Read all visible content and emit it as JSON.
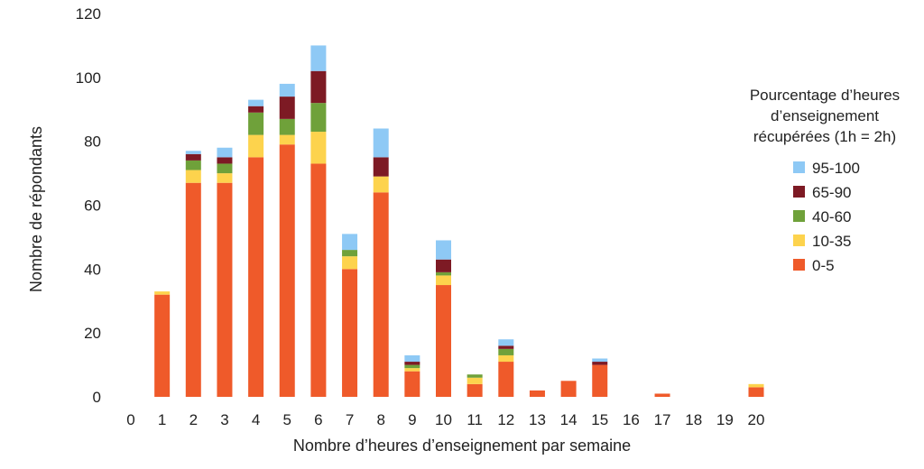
{
  "chart_data": {
    "type": "bar",
    "stacked": true,
    "xlabel": "Nombre d’heures d’enseignement par semaine",
    "ylabel": "Nombre de répondants",
    "ylim": [
      0,
      120
    ],
    "yticks": [
      0,
      20,
      40,
      60,
      80,
      100,
      120
    ],
    "categories": [
      "0",
      "1",
      "2",
      "3",
      "4",
      "5",
      "6",
      "7",
      "8",
      "9",
      "10",
      "11",
      "12",
      "13",
      "14",
      "15",
      "16",
      "17",
      "18",
      "19",
      "20"
    ],
    "legend": {
      "title_lines": [
        "Pourcentage d’heures",
        "d’enseignement",
        "récupérées (1h = 2h)"
      ],
      "placement": "right",
      "order": [
        "95-100",
        "65-90",
        "40-60",
        "10-35",
        "0-5"
      ]
    },
    "series": [
      {
        "name": "0-5",
        "color": "#ef5a2a",
        "values": [
          0,
          32,
          67,
          67,
          75,
          79,
          73,
          40,
          64,
          8,
          35,
          4,
          11,
          2,
          5,
          10,
          0,
          1,
          0,
          0,
          3
        ]
      },
      {
        "name": "10-35",
        "color": "#fdd34d",
        "values": [
          0,
          1,
          4,
          3,
          7,
          3,
          10,
          4,
          5,
          1,
          3,
          2,
          2,
          0,
          0,
          0,
          0,
          0,
          0,
          0,
          1
        ]
      },
      {
        "name": "40-60",
        "color": "#6fa13a",
        "values": [
          0,
          0,
          3,
          3,
          7,
          5,
          9,
          2,
          0,
          1,
          1,
          1,
          2,
          0,
          0,
          0,
          0,
          0,
          0,
          0,
          0
        ]
      },
      {
        "name": "65-90",
        "color": "#7d1a24",
        "values": [
          0,
          0,
          2,
          2,
          2,
          7,
          10,
          0,
          6,
          1,
          4,
          0,
          1,
          0,
          0,
          1,
          0,
          0,
          0,
          0,
          0
        ]
      },
      {
        "name": "95-100",
        "color": "#8ec9f5",
        "values": [
          0,
          0,
          1,
          3,
          2,
          4,
          8,
          5,
          9,
          2,
          6,
          0,
          2,
          0,
          0,
          1,
          0,
          0,
          0,
          0,
          0
        ]
      }
    ]
  }
}
